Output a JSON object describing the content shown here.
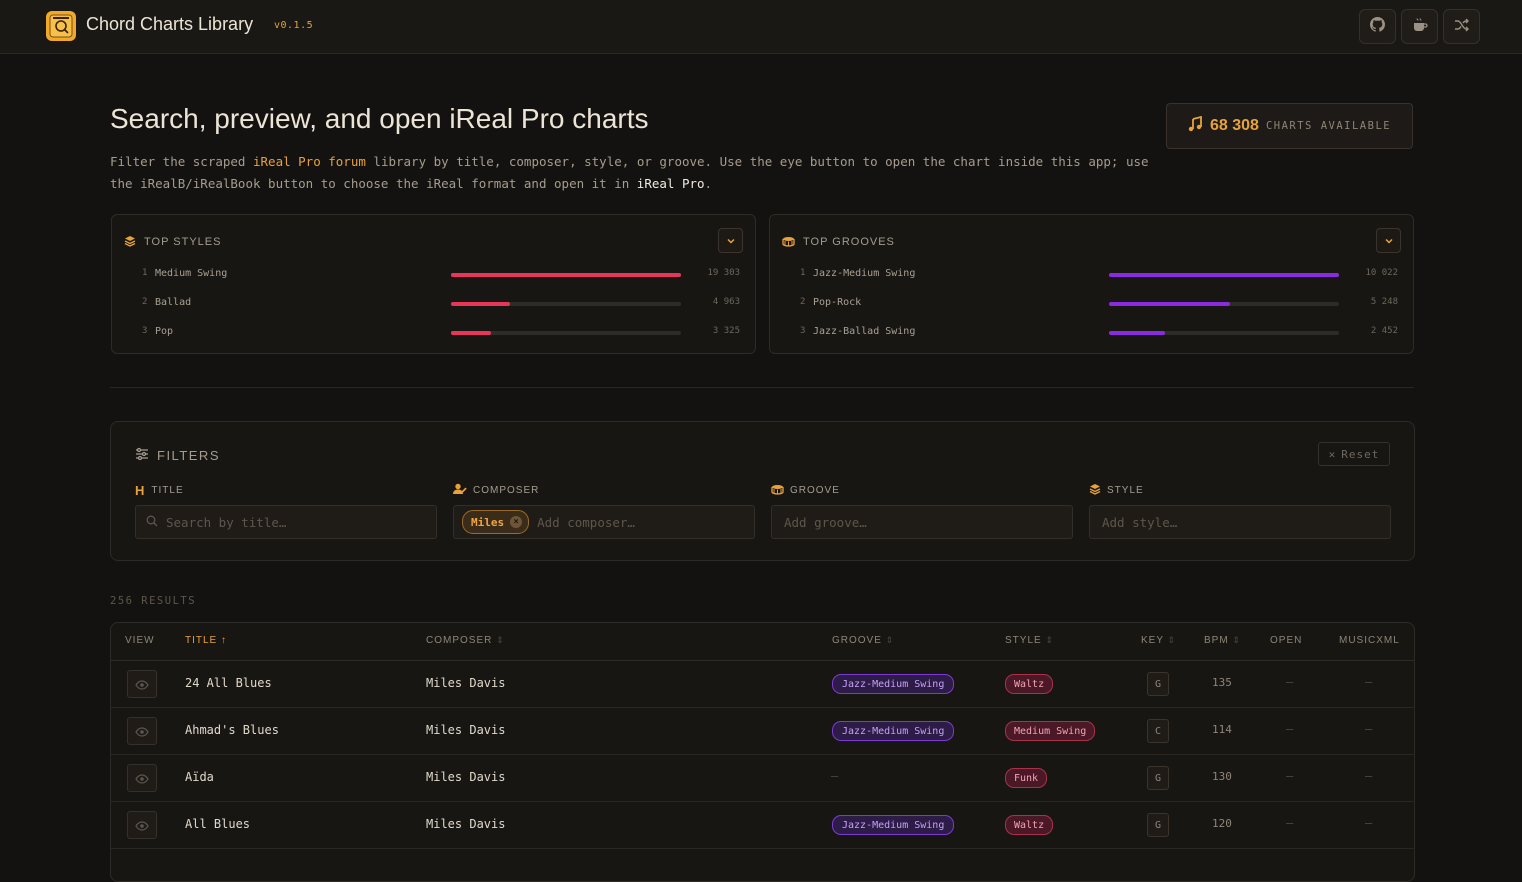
{
  "app": {
    "title": "Chord Charts Library",
    "version": "v0.1.5",
    "toolbar": [
      "github-icon",
      "coffee-icon",
      "shuffle-icon"
    ]
  },
  "hero": {
    "title": "Search, preview, and open iReal Pro charts",
    "desc_1": "Filter the scraped ",
    "desc_link": "iReal Pro forum",
    "desc_2": " library by title, composer, style, or groove. Use the eye button to open the chart inside this app; use the iRealB/iRealBook button to choose the iReal format and open it in ",
    "desc_strong": "iReal Pro",
    "desc_3": ".",
    "charts_count": "68 308",
    "charts_label": "CHARTS AVAILABLE"
  },
  "top_styles": {
    "title": "TOP STYLES",
    "items": [
      {
        "rank": "1",
        "name": "Medium Swing",
        "count": "19 303",
        "fraction": 1.0
      },
      {
        "rank": "2",
        "name": "Ballad",
        "count": "4 963",
        "fraction": 0.257
      },
      {
        "rank": "3",
        "name": "Pop",
        "count": "3 325",
        "fraction": 0.172
      }
    ],
    "color": "#e8355a"
  },
  "top_grooves": {
    "title": "TOP GROOVES",
    "items": [
      {
        "rank": "1",
        "name": "Jazz-Medium Swing",
        "count": "10 022",
        "fraction": 1.0
      },
      {
        "rank": "2",
        "name": "Pop-Rock",
        "count": "5 248",
        "fraction": 0.524
      },
      {
        "rank": "3",
        "name": "Jazz-Ballad Swing",
        "count": "2 452",
        "fraction": 0.245
      }
    ],
    "color": "#8a2be2"
  },
  "filters": {
    "title": "FILTERS",
    "reset": "Reset",
    "title_label": "TITLE",
    "title_placeholder": "Search by title…",
    "composer_label": "COMPOSER",
    "composer_chip": "Miles",
    "composer_placeholder": "Add composer…",
    "groove_label": "GROOVE",
    "groove_placeholder": "Add groove…",
    "style_label": "STYLE",
    "style_placeholder": "Add style…"
  },
  "results_count": "256 RESULTS",
  "table": {
    "columns": {
      "view": "VIEW",
      "title": "TITLE ↑",
      "composer": "COMPOSER",
      "groove": "GROOVE",
      "style": "STYLE",
      "key": "KEY",
      "bpm": "BPM",
      "open": "OPEN",
      "musicxml": "MUSICXML"
    },
    "rows": [
      {
        "title": "24 All Blues",
        "composer": "Miles Davis",
        "groove": "Jazz-Medium Swing",
        "style": "Waltz",
        "key": "G",
        "bpm": "135",
        "open": "—",
        "musicxml": "—"
      },
      {
        "title": "Ahmad's Blues",
        "composer": "Miles Davis",
        "groove": "Jazz-Medium Swing",
        "style": "Medium Swing",
        "key": "C",
        "bpm": "114",
        "open": "—",
        "musicxml": "—"
      },
      {
        "title": "Aïda",
        "composer": "Miles Davis",
        "groove": "—",
        "style": "Funk",
        "key": "G",
        "bpm": "130",
        "open": "—",
        "musicxml": "—"
      },
      {
        "title": "All Blues",
        "composer": "Miles Davis",
        "groove": "Jazz-Medium Swing",
        "style": "Waltz",
        "key": "G",
        "bpm": "120",
        "open": "—",
        "musicxml": "—"
      }
    ]
  }
}
